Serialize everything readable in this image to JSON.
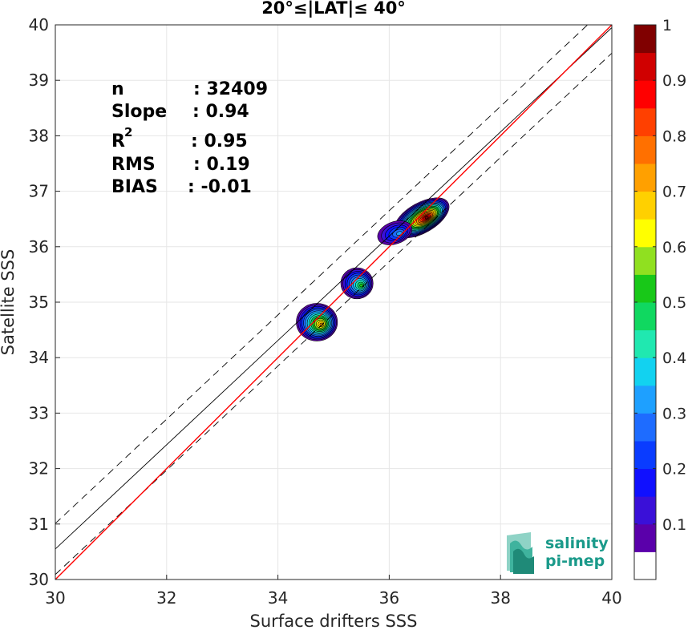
{
  "chart_data": {
    "type": "contour-scatter",
    "title": "20°≤|LAT|≤ 40°",
    "xlabel": "Surface drifters SSS",
    "ylabel": "Satellite SSS",
    "xlim": [
      30,
      40
    ],
    "ylim": [
      30,
      40
    ],
    "xticks": [
      "30",
      "32",
      "34",
      "36",
      "38",
      "40"
    ],
    "yticks": [
      "30",
      "31",
      "32",
      "33",
      "34",
      "35",
      "36",
      "37",
      "38",
      "39",
      "40"
    ],
    "grid": true,
    "stats": {
      "n_label": "n",
      "n_value": ": 32409",
      "slope_label": "Slope",
      "slope_value": ": 0.94",
      "r2_label": "R",
      "r2_sup": "2",
      "r2_value": ": 0.95",
      "rms_label": "RMS",
      "rms_value": ": 0.19",
      "bias_label": "BIAS",
      "bias_value": ": -0.01"
    },
    "lines": {
      "identity": {
        "color": "#ff0000",
        "x": [
          30,
          40
        ],
        "y": [
          30,
          40
        ]
      },
      "regression": {
        "color": "#000000",
        "slope": 0.94,
        "intercept": 2.35
      },
      "envelope_offset": 0.46
    },
    "density_clusters": [
      {
        "x": 34.7,
        "y": 34.64,
        "rx": 0.37,
        "ry": 0.34,
        "rot": 0,
        "peak": 0.72
      },
      {
        "x": 35.42,
        "y": 35.34,
        "rx": 0.29,
        "ry": 0.28,
        "rot": 0,
        "peak": 0.55
      },
      {
        "x": 36.58,
        "y": 36.52,
        "rx": 0.55,
        "ry": 0.27,
        "rot": 30,
        "peak": 1.0
      },
      {
        "x": 36.1,
        "y": 36.25,
        "rx": 0.32,
        "ry": 0.2,
        "rot": 20,
        "peak": 0.3
      }
    ],
    "colorbar": {
      "ticks": [
        "0.1",
        "0.2",
        "0.3",
        "0.4",
        "0.5",
        "0.6",
        "0.7",
        "0.8",
        "0.9",
        "1"
      ],
      "colors": [
        "#ffffff",
        "#5a00aa",
        "#3a10d8",
        "#1010ff",
        "#0a3cff",
        "#1e6cff",
        "#1ea0ff",
        "#12d2f0",
        "#20e8b0",
        "#10d860",
        "#18c818",
        "#90e020",
        "#ffff00",
        "#ffd000",
        "#ffa000",
        "#ff7000",
        "#ff4000",
        "#ff0000",
        "#d00000",
        "#800000"
      ]
    },
    "logo": {
      "line1": "salinity",
      "line2": "pi-mep"
    }
  }
}
